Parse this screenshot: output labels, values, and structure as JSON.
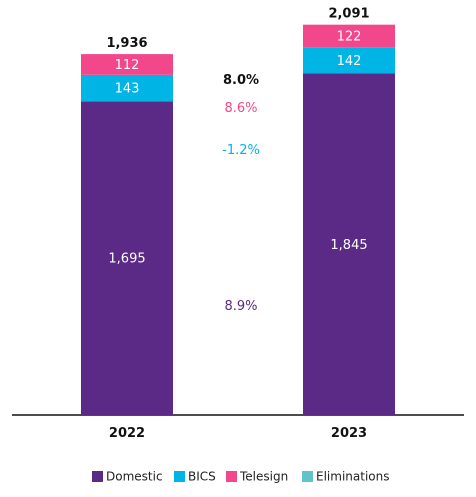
{
  "chart_data": {
    "type": "bar",
    "stacked": true,
    "categories": [
      "2022",
      "2023"
    ],
    "series": [
      {
        "name": "Domestic",
        "color": "#5b2a86",
        "values": [
          1695,
          1845
        ],
        "value_labels": [
          "1,695",
          "1,845"
        ]
      },
      {
        "name": "BICS",
        "color": "#00b4e6",
        "values": [
          143,
          142
        ],
        "value_labels": [
          "143",
          "142"
        ]
      },
      {
        "name": "Telesign",
        "color": "#f2478b",
        "values": [
          112,
          122
        ],
        "value_labels": [
          "112",
          "122"
        ]
      },
      {
        "name": "Eliminations",
        "color": "#5fc4c9",
        "values": [
          -14,
          -18
        ],
        "value_labels": [
          "",
          ""
        ]
      }
    ],
    "totals": [
      "1,936",
      "2,091"
    ],
    "total_values": [
      1936,
      2091
    ],
    "growth_annotations": [
      {
        "text": "8.0%",
        "color": "#111111",
        "bold": true,
        "series": "Total"
      },
      {
        "text": "8.6%",
        "color": "#f2478b",
        "bold": false,
        "series": "Telesign"
      },
      {
        "text": "-1.2%",
        "color": "#00b4e6",
        "bold": false,
        "series": "BICS"
      },
      {
        "text": "8.9%",
        "color": "#5b2a86",
        "bold": false,
        "series": "Domestic"
      }
    ],
    "ylim": [
      0,
      2091
    ],
    "grid": false,
    "legend_position": "bottom"
  }
}
